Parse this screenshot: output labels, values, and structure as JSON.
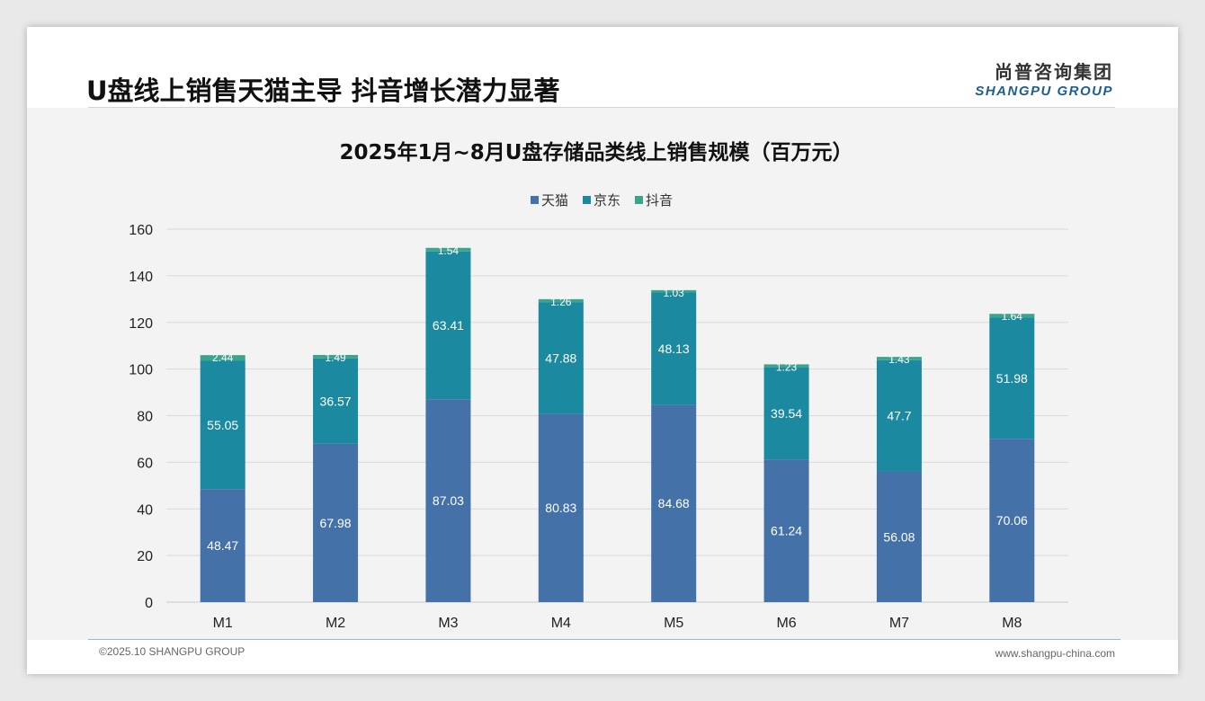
{
  "header": {
    "title": "U盘线上销售天猫主导 抖音增长潜力显著",
    "logo_cn": "尚普咨询集团",
    "logo_en": "SHANGPU GROUP"
  },
  "footer": {
    "copyright": "©2025.10 SHANGPU GROUP",
    "website": "www.shangpu-china.com"
  },
  "watermark": {
    "cn": "尚普咨询集团",
    "en": "SHANGPU GROUP"
  },
  "chart_data": {
    "type": "bar",
    "stacked": true,
    "title": "2025年1月~8月U盘存储品类线上销售规模（百万元）",
    "categories": [
      "M1",
      "M2",
      "M3",
      "M4",
      "M5",
      "M6",
      "M7",
      "M8"
    ],
    "series": [
      {
        "name": "天猫",
        "color": "#4472a8",
        "values": [
          48.47,
          67.98,
          87.03,
          80.83,
          84.68,
          61.24,
          56.08,
          70.06
        ]
      },
      {
        "name": "京东",
        "color": "#1b89a0",
        "values": [
          55.05,
          36.57,
          63.41,
          47.88,
          48.13,
          39.54,
          47.7,
          51.98
        ]
      },
      {
        "name": "抖音",
        "color": "#3aa48c",
        "values": [
          2.44,
          1.49,
          1.54,
          1.26,
          1.03,
          1.23,
          1.43,
          1.64
        ]
      }
    ],
    "ylim": [
      0,
      160
    ],
    "yticks": [
      0,
      20,
      40,
      60,
      80,
      100,
      120,
      140,
      160
    ],
    "grid": true,
    "legend": "top-center",
    "xlabel": "",
    "ylabel": ""
  }
}
